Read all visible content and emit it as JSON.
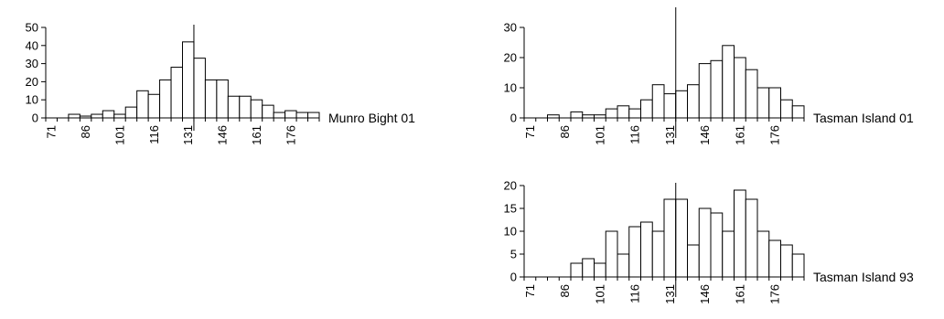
{
  "chart_data": [
    {
      "type": "bar",
      "title": "",
      "site_label": "Munro Bight 01",
      "xlabel": "",
      "ylabel": "",
      "x_ticks": [
        "71",
        "86",
        "101",
        "116",
        "131",
        "146",
        "161",
        "176"
      ],
      "y_ticks": [
        "0",
        "10",
        "20",
        "30",
        "40",
        "50"
      ],
      "ylim": [
        0,
        50
      ],
      "bin_start": 71,
      "bin_width": 5,
      "reference_line_x": 131,
      "grid": false,
      "legend": "none",
      "values": [
        0,
        0,
        2,
        1,
        2,
        4,
        2,
        6,
        15,
        13,
        21,
        28,
        42,
        33,
        21,
        21,
        12,
        12,
        10,
        7,
        3,
        4,
        3,
        3
      ]
    },
    {
      "type": "bar",
      "title": "",
      "site_label": "Tasman Island 01",
      "xlabel": "",
      "ylabel": "",
      "x_ticks": [
        "71",
        "86",
        "101",
        "116",
        "131",
        "146",
        "161",
        "176"
      ],
      "y_ticks": [
        "0",
        "10",
        "20",
        "30"
      ],
      "ylim": [
        0,
        30
      ],
      "bin_start": 71,
      "bin_width": 5,
      "reference_line_x": 131,
      "grid": false,
      "legend": "none",
      "values": [
        0,
        0,
        1,
        0,
        2,
        1,
        1,
        3,
        4,
        3,
        6,
        11,
        8,
        9,
        11,
        18,
        19,
        24,
        20,
        16,
        10,
        10,
        6,
        4
      ]
    },
    {
      "type": "bar",
      "title": "",
      "site_label": "Tasman Island 93",
      "xlabel": "",
      "ylabel": "",
      "x_ticks": [
        "71",
        "86",
        "101",
        "116",
        "131",
        "146",
        "161",
        "176"
      ],
      "y_ticks": [
        "0",
        "5",
        "10",
        "15",
        "20"
      ],
      "ylim": [
        0,
        20
      ],
      "bin_start": 71,
      "bin_width": 5,
      "reference_line_x": 131,
      "grid": false,
      "legend": "none",
      "values": [
        0,
        0,
        0,
        0,
        3,
        4,
        3,
        10,
        5,
        11,
        12,
        10,
        17,
        17,
        7,
        15,
        14,
        10,
        19,
        17,
        10,
        8,
        7,
        5
      ]
    }
  ]
}
